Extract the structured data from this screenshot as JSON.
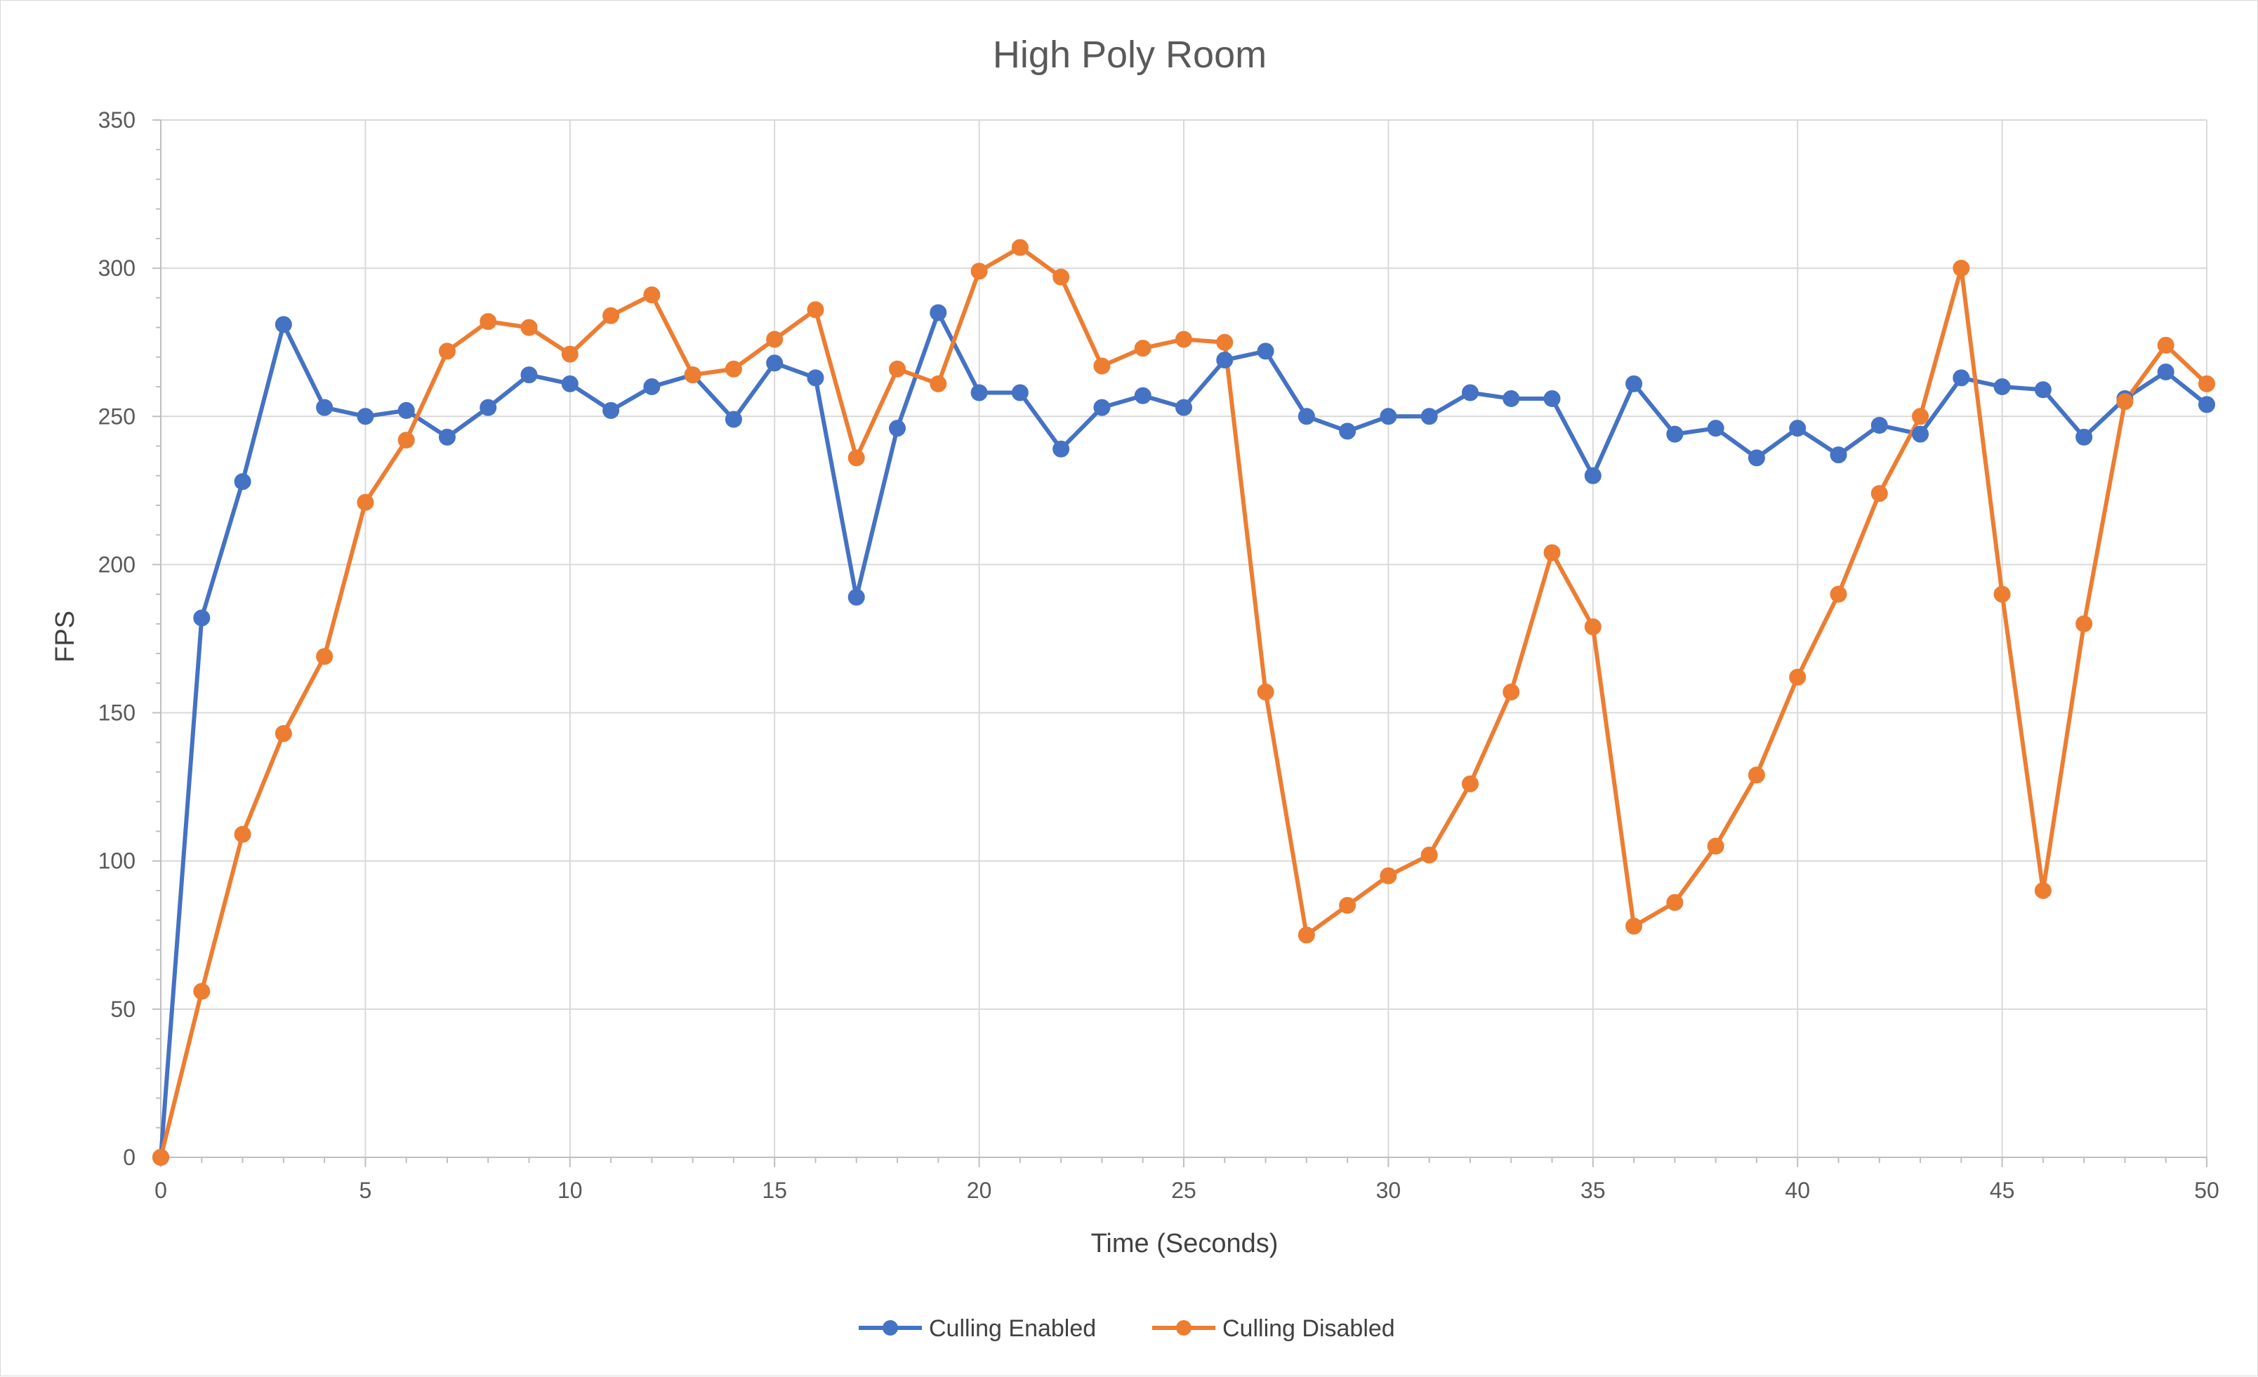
{
  "chart_data": {
    "type": "line",
    "title": "High Poly Room",
    "xlabel": "Time (Seconds)",
    "ylabel": "FPS",
    "xlim": [
      0,
      50
    ],
    "ylim": [
      0,
      350
    ],
    "x_ticks": [
      "0",
      "5",
      "10",
      "15",
      "20",
      "25",
      "30",
      "35",
      "40",
      "45",
      "50"
    ],
    "y_ticks": [
      "0",
      "50",
      "100",
      "150",
      "200",
      "250",
      "300",
      "350"
    ],
    "grid": true,
    "legend_position": "bottom",
    "x": [
      0,
      1,
      2,
      3,
      4,
      5,
      6,
      7,
      8,
      9,
      10,
      11,
      12,
      13,
      14,
      15,
      16,
      17,
      18,
      19,
      20,
      21,
      22,
      23,
      24,
      25,
      26,
      27,
      28,
      29,
      30,
      31,
      32,
      33,
      34,
      35,
      36,
      37,
      38,
      39,
      40,
      41,
      42,
      43,
      44,
      45,
      46,
      47,
      48,
      49,
      50
    ],
    "series": [
      {
        "name": "Culling Enabled",
        "color": "#4472c4",
        "values": [
          0,
          182,
          228,
          281,
          253,
          250,
          252,
          243,
          253,
          264,
          261,
          252,
          260,
          264,
          249,
          268,
          263,
          189,
          246,
          285,
          258,
          258,
          239,
          253,
          257,
          253,
          269,
          272,
          250,
          245,
          250,
          250,
          258,
          256,
          256,
          230,
          261,
          244,
          246,
          236,
          246,
          237,
          247,
          244,
          263,
          260,
          259,
          243,
          256,
          265,
          254
        ]
      },
      {
        "name": "Culling Disabled",
        "color": "#ed7d31",
        "values": [
          0,
          56,
          109,
          143,
          169,
          221,
          242,
          272,
          282,
          280,
          271,
          284,
          291,
          264,
          266,
          276,
          286,
          236,
          266,
          261,
          299,
          307,
          297,
          267,
          273,
          276,
          275,
          157,
          75,
          85,
          95,
          102,
          126,
          157,
          204,
          179,
          78,
          86,
          105,
          129,
          162,
          190,
          224,
          250,
          300,
          190,
          90,
          180,
          255,
          274,
          261
        ]
      }
    ]
  }
}
